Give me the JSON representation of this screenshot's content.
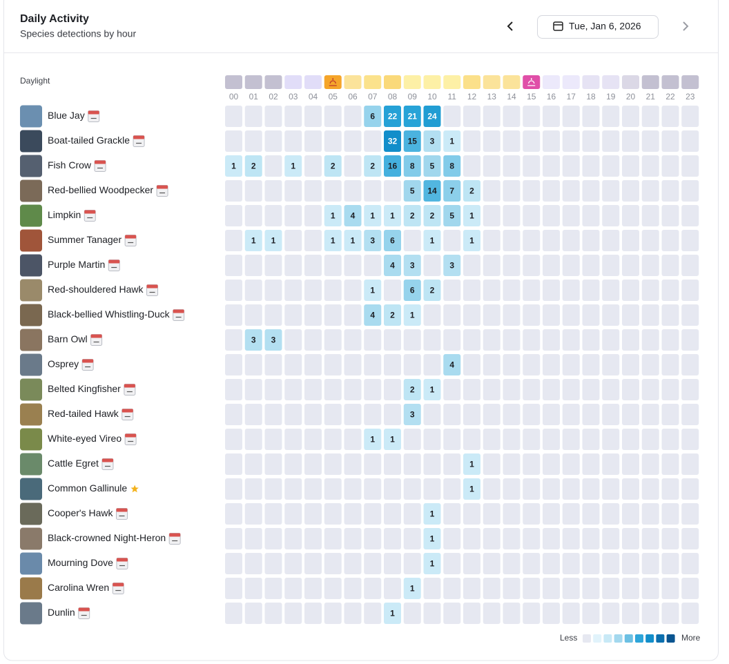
{
  "header": {
    "title": "Daily Activity",
    "subtitle": "Species detections by hour",
    "date": "Tue, Jan 6, 2026"
  },
  "heatmap": {
    "daylight_label": "Daylight",
    "daylight_colors": [
      "#c3c0d1",
      "#c3c0d1",
      "#c3c0d1",
      "#e1ddf8",
      "#e1ddf8",
      "#f5a52a",
      "#fbe39a",
      "#fbe28c",
      "#fad97a",
      "#fdf0a6",
      "#fdf0a6",
      "#fdf0a6",
      "#fbe08a",
      "#fbe39a",
      "#fbe39a",
      "#e04fa8",
      "#ece9fb",
      "#ece9fb",
      "#e6e3f4",
      "#e6e3f4",
      "#dbd8e6",
      "#c3c0d1",
      "#c3c0d1",
      "#c3c0d1"
    ],
    "hours": [
      "00",
      "01",
      "02",
      "03",
      "04",
      "05",
      "06",
      "07",
      "08",
      "09",
      "10",
      "11",
      "12",
      "13",
      "14",
      "15",
      "16",
      "17",
      "18",
      "19",
      "20",
      "21",
      "22",
      "23"
    ],
    "species": [
      {
        "name": "Blue Jay",
        "icon": "calendar",
        "counts": [
          null,
          null,
          null,
          null,
          null,
          null,
          null,
          6,
          22,
          21,
          24,
          null,
          null,
          null,
          null,
          null,
          null,
          null,
          null,
          null,
          null,
          null,
          null,
          null
        ]
      },
      {
        "name": "Boat-tailed Grackle",
        "icon": "calendar",
        "counts": [
          null,
          null,
          null,
          null,
          null,
          null,
          null,
          null,
          32,
          15,
          3,
          1,
          null,
          null,
          null,
          null,
          null,
          null,
          null,
          null,
          null,
          null,
          null,
          null
        ]
      },
      {
        "name": "Fish Crow",
        "icon": "calendar",
        "counts": [
          1,
          2,
          null,
          1,
          null,
          2,
          null,
          2,
          16,
          8,
          5,
          8,
          null,
          null,
          null,
          null,
          null,
          null,
          null,
          null,
          null,
          null,
          null,
          null
        ]
      },
      {
        "name": "Red-bellied Woodpecker",
        "icon": "calendar",
        "counts": [
          null,
          null,
          null,
          null,
          null,
          null,
          null,
          null,
          null,
          5,
          14,
          7,
          2,
          null,
          null,
          null,
          null,
          null,
          null,
          null,
          null,
          null,
          null,
          null
        ]
      },
      {
        "name": "Limpkin",
        "icon": "calendar",
        "counts": [
          null,
          null,
          null,
          null,
          null,
          1,
          4,
          1,
          1,
          2,
          2,
          5,
          1,
          null,
          null,
          null,
          null,
          null,
          null,
          null,
          null,
          null,
          null,
          null
        ]
      },
      {
        "name": "Summer Tanager",
        "icon": "calendar",
        "counts": [
          null,
          1,
          1,
          null,
          null,
          1,
          1,
          3,
          6,
          null,
          1,
          null,
          1,
          null,
          null,
          null,
          null,
          null,
          null,
          null,
          null,
          null,
          null,
          null
        ]
      },
      {
        "name": "Purple Martin",
        "icon": "calendar",
        "counts": [
          null,
          null,
          null,
          null,
          null,
          null,
          null,
          null,
          4,
          3,
          null,
          3,
          null,
          null,
          null,
          null,
          null,
          null,
          null,
          null,
          null,
          null,
          null,
          null
        ]
      },
      {
        "name": "Red-shouldered Hawk",
        "icon": "calendar",
        "counts": [
          null,
          null,
          null,
          null,
          null,
          null,
          null,
          1,
          null,
          6,
          2,
          null,
          null,
          null,
          null,
          null,
          null,
          null,
          null,
          null,
          null,
          null,
          null,
          null
        ]
      },
      {
        "name": "Black-bellied Whistling-Duck",
        "icon": "calendar",
        "counts": [
          null,
          null,
          null,
          null,
          null,
          null,
          null,
          4,
          2,
          1,
          null,
          null,
          null,
          null,
          null,
          null,
          null,
          null,
          null,
          null,
          null,
          null,
          null,
          null
        ]
      },
      {
        "name": "Barn Owl",
        "icon": "calendar",
        "counts": [
          null,
          3,
          3,
          null,
          null,
          null,
          null,
          null,
          null,
          null,
          null,
          null,
          null,
          null,
          null,
          null,
          null,
          null,
          null,
          null,
          null,
          null,
          null,
          null
        ]
      },
      {
        "name": "Osprey",
        "icon": "calendar",
        "counts": [
          null,
          null,
          null,
          null,
          null,
          null,
          null,
          null,
          null,
          null,
          null,
          4,
          null,
          null,
          null,
          null,
          null,
          null,
          null,
          null,
          null,
          null,
          null,
          null
        ]
      },
      {
        "name": "Belted Kingfisher",
        "icon": "calendar",
        "counts": [
          null,
          null,
          null,
          null,
          null,
          null,
          null,
          null,
          null,
          2,
          1,
          null,
          null,
          null,
          null,
          null,
          null,
          null,
          null,
          null,
          null,
          null,
          null,
          null
        ]
      },
      {
        "name": "Red-tailed Hawk",
        "icon": "calendar",
        "counts": [
          null,
          null,
          null,
          null,
          null,
          null,
          null,
          null,
          null,
          3,
          null,
          null,
          null,
          null,
          null,
          null,
          null,
          null,
          null,
          null,
          null,
          null,
          null,
          null
        ]
      },
      {
        "name": "White-eyed Vireo",
        "icon": "calendar",
        "counts": [
          null,
          null,
          null,
          null,
          null,
          null,
          null,
          1,
          1,
          null,
          null,
          null,
          null,
          null,
          null,
          null,
          null,
          null,
          null,
          null,
          null,
          null,
          null,
          null
        ]
      },
      {
        "name": "Cattle Egret",
        "icon": "calendar",
        "counts": [
          null,
          null,
          null,
          null,
          null,
          null,
          null,
          null,
          null,
          null,
          null,
          null,
          1,
          null,
          null,
          null,
          null,
          null,
          null,
          null,
          null,
          null,
          null,
          null
        ]
      },
      {
        "name": "Common Gallinule",
        "icon": "star",
        "counts": [
          null,
          null,
          null,
          null,
          null,
          null,
          null,
          null,
          null,
          null,
          null,
          null,
          1,
          null,
          null,
          null,
          null,
          null,
          null,
          null,
          null,
          null,
          null,
          null
        ]
      },
      {
        "name": "Cooper's Hawk",
        "icon": "calendar",
        "counts": [
          null,
          null,
          null,
          null,
          null,
          null,
          null,
          null,
          null,
          null,
          1,
          null,
          null,
          null,
          null,
          null,
          null,
          null,
          null,
          null,
          null,
          null,
          null,
          null
        ]
      },
      {
        "name": "Black-crowned Night-Heron",
        "icon": "calendar",
        "counts": [
          null,
          null,
          null,
          null,
          null,
          null,
          null,
          null,
          null,
          null,
          1,
          null,
          null,
          null,
          null,
          null,
          null,
          null,
          null,
          null,
          null,
          null,
          null,
          null
        ]
      },
      {
        "name": "Mourning Dove",
        "icon": "calendar",
        "counts": [
          null,
          null,
          null,
          null,
          null,
          null,
          null,
          null,
          null,
          null,
          1,
          null,
          null,
          null,
          null,
          null,
          null,
          null,
          null,
          null,
          null,
          null,
          null,
          null
        ]
      },
      {
        "name": "Carolina Wren",
        "icon": "calendar",
        "counts": [
          null,
          null,
          null,
          null,
          null,
          null,
          null,
          null,
          null,
          1,
          null,
          null,
          null,
          null,
          null,
          null,
          null,
          null,
          null,
          null,
          null,
          null,
          null,
          null
        ]
      },
      {
        "name": "Dunlin",
        "icon": "calendar",
        "counts": [
          null,
          null,
          null,
          null,
          null,
          null,
          null,
          null,
          1,
          null,
          null,
          null,
          null,
          null,
          null,
          null,
          null,
          null,
          null,
          null,
          null,
          null,
          null,
          null
        ]
      }
    ]
  },
  "legend": {
    "less": "Less",
    "more": "More"
  }
}
